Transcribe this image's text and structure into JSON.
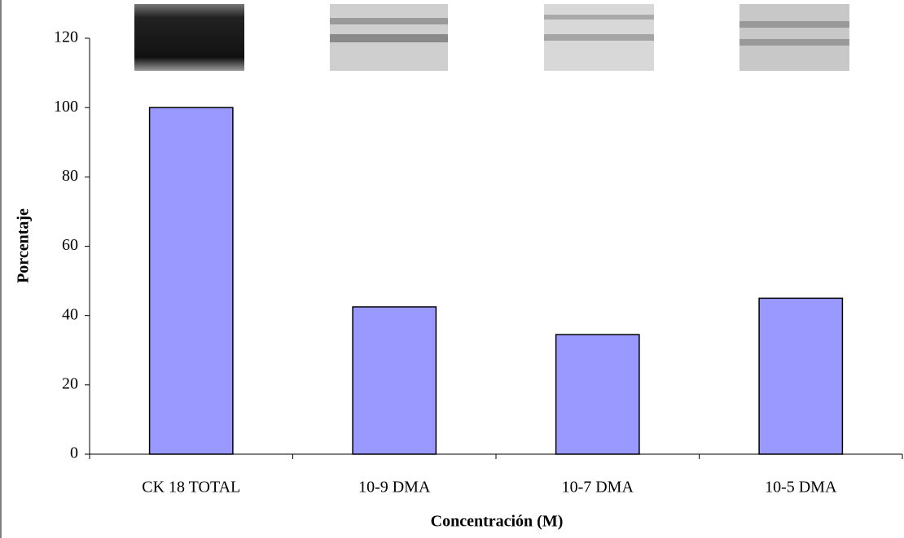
{
  "chart_data": {
    "type": "bar",
    "x_label": "Concentración (M)",
    "y_label": "Porcentaje",
    "categories": [
      "CK 18 TOTAL",
      "10-9 DMA",
      "10-7 DMA",
      "10-5 DMA"
    ],
    "values": [
      100,
      42.5,
      34.5,
      45
    ],
    "color": "#9999ff",
    "ylim": [
      0,
      120
    ],
    "yticks": [
      0,
      20,
      40,
      60,
      80,
      100,
      120
    ],
    "grid": false
  }
}
